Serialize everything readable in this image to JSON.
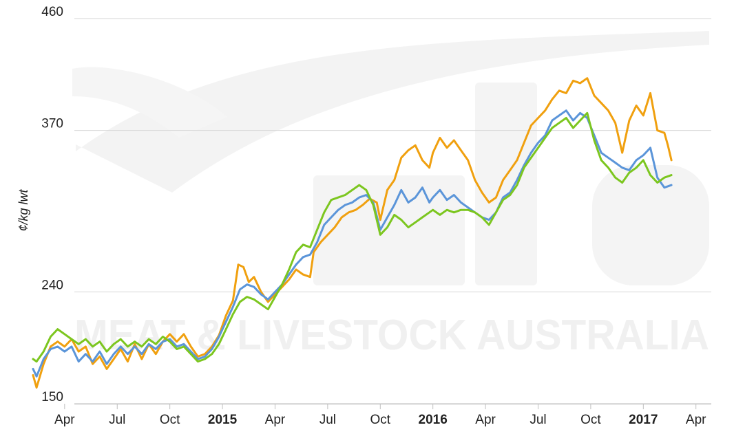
{
  "chart_data": {
    "type": "line",
    "title": "",
    "xlabel": "",
    "ylabel": "¢/kg lwt",
    "ylim": [
      150,
      460
    ],
    "y_gridlines": [
      150,
      240,
      370,
      460
    ],
    "y_ticks": [
      "150",
      "240",
      "370",
      "460"
    ],
    "grid": "horizontal",
    "legend": "none",
    "x_ticks": [
      {
        "label": "Apr",
        "t": 3,
        "bold": false
      },
      {
        "label": "Jul",
        "t": 6,
        "bold": false
      },
      {
        "label": "Oct",
        "t": 9,
        "bold": false
      },
      {
        "label": "2015",
        "t": 12,
        "bold": true
      },
      {
        "label": "Apr",
        "t": 15,
        "bold": false
      },
      {
        "label": "Jul",
        "t": 18,
        "bold": false
      },
      {
        "label": "Oct",
        "t": 21,
        "bold": false
      },
      {
        "label": "2016",
        "t": 24,
        "bold": true
      },
      {
        "label": "Apr",
        "t": 27,
        "bold": false
      },
      {
        "label": "Jul",
        "t": 30,
        "bold": false
      },
      {
        "label": "Oct",
        "t": 33,
        "bold": false
      },
      {
        "label": "2017",
        "t": 36,
        "bold": true
      },
      {
        "label": "Apr",
        "t": 39,
        "bold": false
      }
    ],
    "x_range": [
      1.2,
      39.6
    ],
    "watermark": {
      "logo": "mla",
      "text": "MEAT & LIVESTOCK AUSTRALIA"
    },
    "series": [
      {
        "color": "#f0a00f",
        "points": [
          [
            1.2,
            173
          ],
          [
            1.4,
            163
          ],
          [
            1.8,
            182
          ],
          [
            2.2,
            196
          ],
          [
            2.6,
            200
          ],
          [
            3.0,
            196
          ],
          [
            3.4,
            202
          ],
          [
            3.8,
            192
          ],
          [
            4.2,
            196
          ],
          [
            4.6,
            182
          ],
          [
            5.0,
            188
          ],
          [
            5.4,
            178
          ],
          [
            5.8,
            186
          ],
          [
            6.2,
            194
          ],
          [
            6.6,
            184
          ],
          [
            7.0,
            198
          ],
          [
            7.4,
            186
          ],
          [
            7.8,
            198
          ],
          [
            8.2,
            190
          ],
          [
            8.6,
            200
          ],
          [
            9.0,
            206
          ],
          [
            9.4,
            200
          ],
          [
            9.8,
            206
          ],
          [
            10.2,
            196
          ],
          [
            10.6,
            188
          ],
          [
            11.0,
            190
          ],
          [
            11.4,
            196
          ],
          [
            11.8,
            205
          ],
          [
            12.2,
            221
          ],
          [
            12.6,
            233
          ],
          [
            12.9,
            262
          ],
          [
            13.2,
            260
          ],
          [
            13.5,
            248
          ],
          [
            13.8,
            252
          ],
          [
            14.2,
            240
          ],
          [
            14.6,
            232
          ],
          [
            15.0,
            238
          ],
          [
            15.4,
            244
          ],
          [
            15.8,
            250
          ],
          [
            16.2,
            258
          ],
          [
            16.6,
            254
          ],
          [
            17.0,
            252
          ],
          [
            17.2,
            272
          ],
          [
            17.6,
            280
          ],
          [
            18.0,
            286
          ],
          [
            18.4,
            292
          ],
          [
            18.8,
            300
          ],
          [
            19.2,
            304
          ],
          [
            19.6,
            306
          ],
          [
            20.0,
            310
          ],
          [
            20.4,
            315
          ],
          [
            20.8,
            312
          ],
          [
            21.0,
            298
          ],
          [
            21.4,
            322
          ],
          [
            21.8,
            330
          ],
          [
            22.2,
            348
          ],
          [
            22.6,
            354
          ],
          [
            23.0,
            358
          ],
          [
            23.4,
            346
          ],
          [
            23.8,
            340
          ],
          [
            24.0,
            352
          ],
          [
            24.4,
            364
          ],
          [
            24.8,
            356
          ],
          [
            25.2,
            362
          ],
          [
            25.6,
            354
          ],
          [
            26.0,
            346
          ],
          [
            26.4,
            330
          ],
          [
            26.8,
            320
          ],
          [
            27.2,
            312
          ],
          [
            27.6,
            316
          ],
          [
            28.0,
            330
          ],
          [
            28.4,
            338
          ],
          [
            28.8,
            346
          ],
          [
            29.2,
            360
          ],
          [
            29.6,
            374
          ],
          [
            30.0,
            380
          ],
          [
            30.4,
            386
          ],
          [
            30.8,
            395
          ],
          [
            31.2,
            402
          ],
          [
            31.6,
            400
          ],
          [
            32.0,
            410
          ],
          [
            32.4,
            408
          ],
          [
            32.8,
            412
          ],
          [
            33.2,
            398
          ],
          [
            33.6,
            392
          ],
          [
            34.0,
            386
          ],
          [
            34.4,
            376
          ],
          [
            34.8,
            352
          ],
          [
            35.2,
            378
          ],
          [
            35.6,
            390
          ],
          [
            36.0,
            382
          ],
          [
            36.4,
            400
          ],
          [
            36.8,
            370
          ],
          [
            37.2,
            368
          ],
          [
            37.4,
            358
          ],
          [
            37.6,
            346
          ]
        ]
      },
      {
        "color": "#5b95d9",
        "points": [
          [
            1.2,
            178
          ],
          [
            1.4,
            172
          ],
          [
            1.8,
            186
          ],
          [
            2.2,
            194
          ],
          [
            2.6,
            196
          ],
          [
            3.0,
            192
          ],
          [
            3.4,
            196
          ],
          [
            3.8,
            184
          ],
          [
            4.2,
            190
          ],
          [
            4.6,
            184
          ],
          [
            5.0,
            192
          ],
          [
            5.4,
            182
          ],
          [
            5.8,
            190
          ],
          [
            6.2,
            196
          ],
          [
            6.6,
            190
          ],
          [
            7.0,
            196
          ],
          [
            7.4,
            190
          ],
          [
            7.8,
            198
          ],
          [
            8.2,
            194
          ],
          [
            8.6,
            200
          ],
          [
            9.0,
            202
          ],
          [
            9.4,
            196
          ],
          [
            9.8,
            198
          ],
          [
            10.2,
            192
          ],
          [
            10.6,
            186
          ],
          [
            11.0,
            188
          ],
          [
            11.4,
            194
          ],
          [
            11.8,
            204
          ],
          [
            12.2,
            216
          ],
          [
            12.6,
            228
          ],
          [
            13.0,
            242
          ],
          [
            13.4,
            246
          ],
          [
            13.8,
            244
          ],
          [
            14.2,
            238
          ],
          [
            14.6,
            234
          ],
          [
            15.0,
            240
          ],
          [
            15.4,
            246
          ],
          [
            15.8,
            254
          ],
          [
            16.2,
            262
          ],
          [
            16.6,
            268
          ],
          [
            17.0,
            270
          ],
          [
            17.4,
            280
          ],
          [
            17.8,
            294
          ],
          [
            18.2,
            300
          ],
          [
            18.6,
            306
          ],
          [
            19.0,
            310
          ],
          [
            19.4,
            312
          ],
          [
            19.8,
            316
          ],
          [
            20.2,
            318
          ],
          [
            20.6,
            312
          ],
          [
            21.0,
            290
          ],
          [
            21.4,
            300
          ],
          [
            21.8,
            310
          ],
          [
            22.2,
            322
          ],
          [
            22.6,
            312
          ],
          [
            23.0,
            316
          ],
          [
            23.4,
            324
          ],
          [
            23.8,
            312
          ],
          [
            24.0,
            316
          ],
          [
            24.4,
            322
          ],
          [
            24.8,
            314
          ],
          [
            25.2,
            318
          ],
          [
            25.6,
            312
          ],
          [
            26.0,
            308
          ],
          [
            26.4,
            304
          ],
          [
            26.8,
            300
          ],
          [
            27.2,
            298
          ],
          [
            27.6,
            304
          ],
          [
            28.0,
            316
          ],
          [
            28.4,
            320
          ],
          [
            28.8,
            330
          ],
          [
            29.2,
            342
          ],
          [
            29.6,
            352
          ],
          [
            30.0,
            360
          ],
          [
            30.4,
            366
          ],
          [
            30.8,
            378
          ],
          [
            31.2,
            382
          ],
          [
            31.6,
            386
          ],
          [
            32.0,
            378
          ],
          [
            32.4,
            384
          ],
          [
            32.8,
            380
          ],
          [
            33.2,
            366
          ],
          [
            33.6,
            352
          ],
          [
            34.0,
            348
          ],
          [
            34.4,
            344
          ],
          [
            34.8,
            340
          ],
          [
            35.2,
            338
          ],
          [
            35.6,
            346
          ],
          [
            36.0,
            350
          ],
          [
            36.4,
            356
          ],
          [
            36.8,
            332
          ],
          [
            37.2,
            324
          ],
          [
            37.6,
            326
          ]
        ]
      },
      {
        "color": "#7cc61f",
        "points": [
          [
            1.2,
            186
          ],
          [
            1.4,
            184
          ],
          [
            1.8,
            192
          ],
          [
            2.2,
            204
          ],
          [
            2.6,
            210
          ],
          [
            3.0,
            206
          ],
          [
            3.4,
            202
          ],
          [
            3.8,
            198
          ],
          [
            4.2,
            202
          ],
          [
            4.6,
            196
          ],
          [
            5.0,
            200
          ],
          [
            5.4,
            192
          ],
          [
            5.8,
            198
          ],
          [
            6.2,
            202
          ],
          [
            6.6,
            196
          ],
          [
            7.0,
            200
          ],
          [
            7.4,
            196
          ],
          [
            7.8,
            202
          ],
          [
            8.2,
            198
          ],
          [
            8.6,
            204
          ],
          [
            9.0,
            200
          ],
          [
            9.4,
            194
          ],
          [
            9.8,
            196
          ],
          [
            10.2,
            190
          ],
          [
            10.6,
            184
          ],
          [
            11.0,
            186
          ],
          [
            11.4,
            190
          ],
          [
            11.8,
            198
          ],
          [
            12.2,
            210
          ],
          [
            12.6,
            222
          ],
          [
            13.0,
            232
          ],
          [
            13.4,
            236
          ],
          [
            13.8,
            234
          ],
          [
            14.2,
            230
          ],
          [
            14.6,
            226
          ],
          [
            15.0,
            236
          ],
          [
            15.4,
            246
          ],
          [
            15.8,
            258
          ],
          [
            16.2,
            272
          ],
          [
            16.6,
            278
          ],
          [
            17.0,
            276
          ],
          [
            17.4,
            290
          ],
          [
            17.8,
            304
          ],
          [
            18.2,
            314
          ],
          [
            18.6,
            316
          ],
          [
            19.0,
            318
          ],
          [
            19.4,
            322
          ],
          [
            19.8,
            326
          ],
          [
            20.2,
            322
          ],
          [
            20.6,
            310
          ],
          [
            21.0,
            286
          ],
          [
            21.4,
            292
          ],
          [
            21.8,
            302
          ],
          [
            22.2,
            298
          ],
          [
            22.6,
            292
          ],
          [
            23.0,
            296
          ],
          [
            23.4,
            300
          ],
          [
            23.8,
            304
          ],
          [
            24.0,
            306
          ],
          [
            24.4,
            302
          ],
          [
            24.8,
            306
          ],
          [
            25.2,
            304
          ],
          [
            25.6,
            306
          ],
          [
            26.0,
            306
          ],
          [
            26.4,
            304
          ],
          [
            26.8,
            300
          ],
          [
            27.2,
            294
          ],
          [
            27.6,
            304
          ],
          [
            28.0,
            314
          ],
          [
            28.4,
            318
          ],
          [
            28.8,
            326
          ],
          [
            29.2,
            340
          ],
          [
            29.6,
            348
          ],
          [
            30.0,
            356
          ],
          [
            30.4,
            364
          ],
          [
            30.8,
            372
          ],
          [
            31.2,
            376
          ],
          [
            31.6,
            380
          ],
          [
            32.0,
            372
          ],
          [
            32.4,
            378
          ],
          [
            32.8,
            384
          ],
          [
            33.2,
            362
          ],
          [
            33.6,
            346
          ],
          [
            34.0,
            340
          ],
          [
            34.4,
            332
          ],
          [
            34.8,
            328
          ],
          [
            35.2,
            336
          ],
          [
            35.6,
            340
          ],
          [
            36.0,
            346
          ],
          [
            36.4,
            334
          ],
          [
            36.8,
            328
          ],
          [
            37.2,
            332
          ],
          [
            37.6,
            334
          ]
        ]
      }
    ]
  }
}
